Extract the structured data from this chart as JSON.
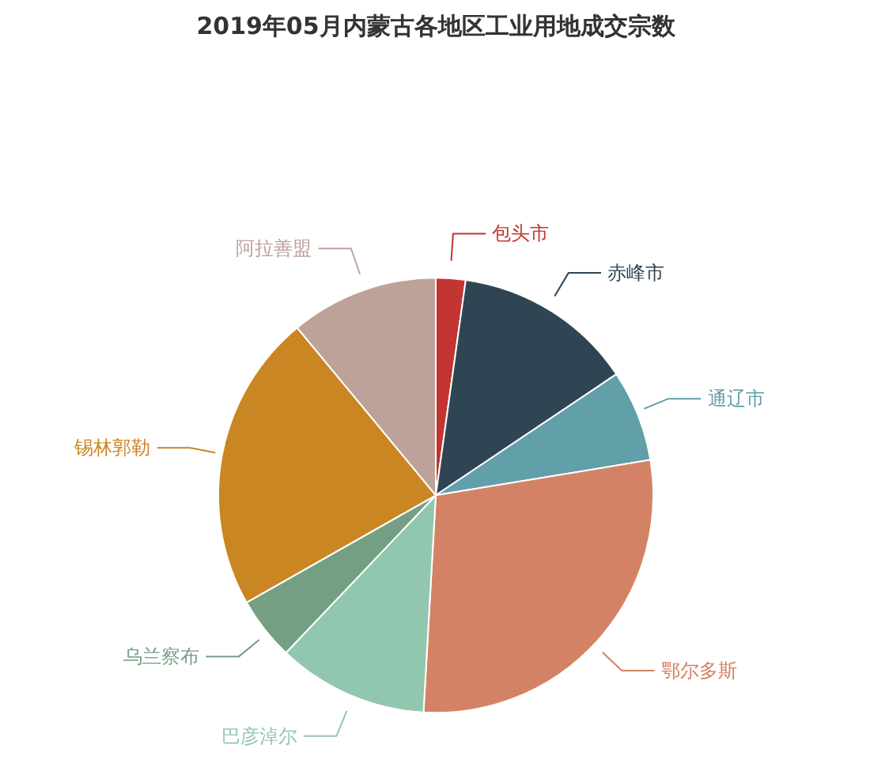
{
  "chart_data": {
    "type": "pie",
    "title": "2019年05月内蒙古各地区工业用地成交宗数",
    "categories": [
      "包头市",
      "赤峰市",
      "通辽市",
      "鄂尔多斯",
      "巴彦淖尔",
      "乌兰察布",
      "锡林郭勒",
      "阿拉善盟"
    ],
    "values": [
      2.2,
      13.4,
      6.8,
      28.5,
      11.2,
      4.7,
      22.2,
      11.0
    ],
    "colors": [
      "#c23531",
      "#2f4554",
      "#61a0a8",
      "#d48265",
      "#91c7ae",
      "#749f83",
      "#ca8622",
      "#bda29a"
    ]
  }
}
